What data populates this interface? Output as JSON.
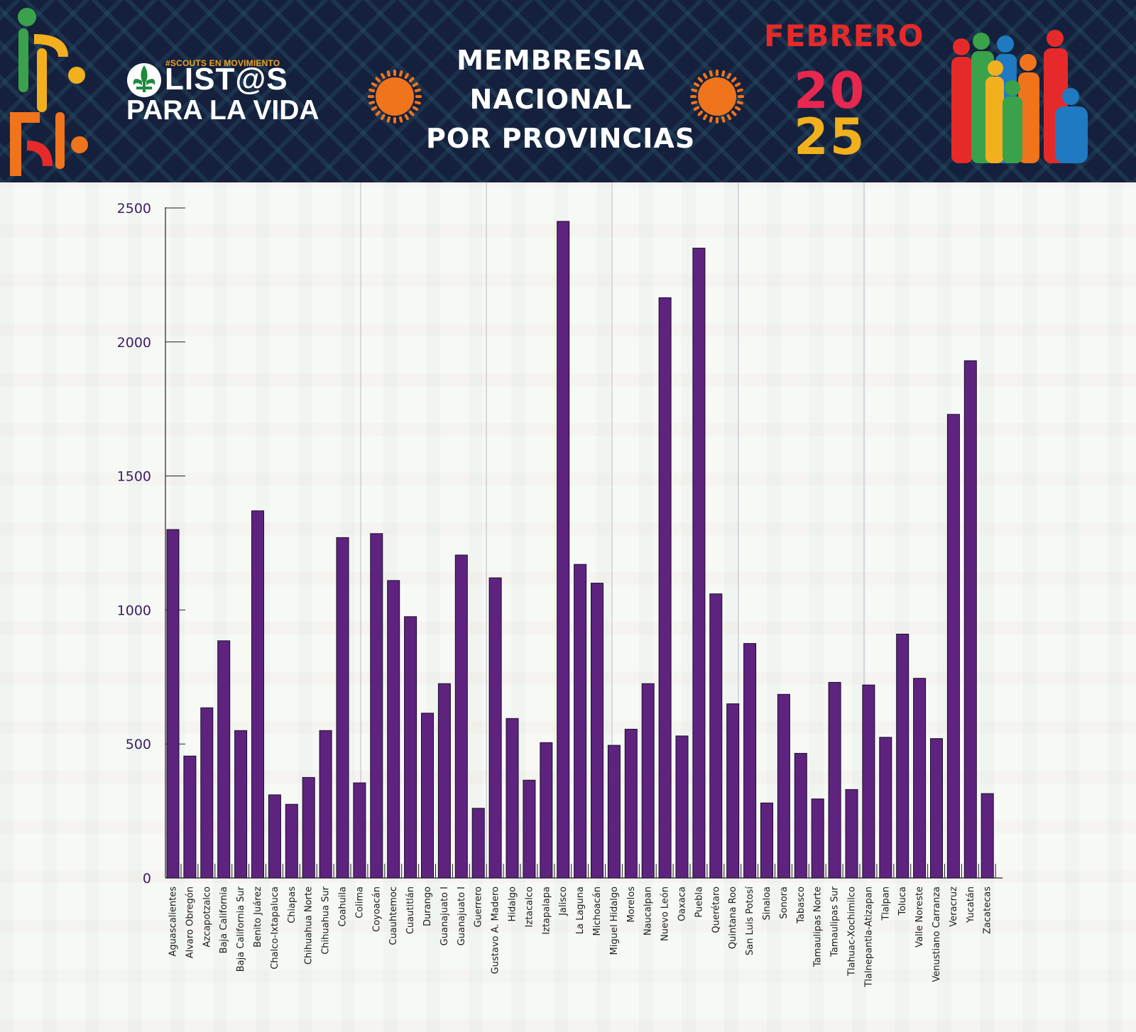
{
  "header": {
    "tagline": "#SCOUTS EN MOVIMIENTO",
    "brand_line1": "LIST@S",
    "brand_line2": "PARA LA VIDA",
    "title_lines": [
      "MEMBRESIA",
      "NACIONAL",
      "POR PROVINCIAS"
    ],
    "month": "FEBRERO",
    "year_top": "20",
    "year_bottom": "25"
  },
  "colors": {
    "bar": "#5e237f",
    "axis_ticks": "#3c1d66",
    "header_bg": "#15203d",
    "sun": "#f0741c",
    "title": "#ffffff",
    "month": "#e62a2a",
    "year_top": "#e8274f",
    "year_bottom": "#f2b01e"
  },
  "icons": [
    "scout-fleur-de-lis-icon",
    "sun-icon",
    "scouts-silhouettes-illustration",
    "decorative-motif-icon"
  ],
  "chart_data": {
    "type": "bar",
    "title": "",
    "xlabel": "",
    "ylabel": "",
    "ylim": [
      0,
      2500
    ],
    "yticks": [
      0,
      500,
      1000,
      1500,
      2000,
      2500
    ],
    "grid": false,
    "legend": "none",
    "categories": [
      "Aguascalientes",
      "Alvaro Obregón",
      "Azcapotzalco",
      "Baja California",
      "Baja California Sur",
      "Benito Juárez",
      "Chalco-Ixtapaluca",
      "Chiapas",
      "Chihuahua Norte",
      "Chihuahua Sur",
      "Coahuila",
      "Colima",
      "Coyoacán",
      "Cuauhtemoc",
      "Cuautitlán",
      "Durango",
      "Guanajuato I",
      "Guanajuato I",
      "Guerrero",
      "Gustavo A. Madero",
      "Hidalgo",
      "Iztacalco",
      "Iztapalapa",
      "Jalisco",
      "La Laguna",
      "Michoacán",
      "Miguel Hidalgo",
      "Morelos",
      "Naucalpan",
      "Nuevo León",
      "Oaxaca",
      "Puebla",
      "Querétaro",
      "Quintana Roo",
      "San Luis Potosí",
      "Sinaloa",
      "Sonora",
      "Tabasco",
      "Tamaulipas Norte",
      "Tamaulipas Sur",
      "Tlahuac-Xochimilco",
      "Tlalnepantla-Atizapan",
      "Tlalpan",
      "Toluca",
      "Valle Noreste",
      "Venustiano Carranza",
      "Veracruz",
      "Yucatán",
      "Zacatecas"
    ],
    "values": [
      1300,
      455,
      635,
      885,
      550,
      1370,
      310,
      275,
      375,
      550,
      1270,
      355,
      1285,
      1110,
      975,
      615,
      725,
      1205,
      260,
      1120,
      595,
      365,
      505,
      2450,
      1170,
      1100,
      495,
      555,
      725,
      2165,
      530,
      2350,
      1060,
      650,
      875,
      280,
      685,
      465,
      295,
      730,
      330,
      720,
      525,
      910,
      745,
      520,
      1730,
      1930,
      315
    ]
  }
}
